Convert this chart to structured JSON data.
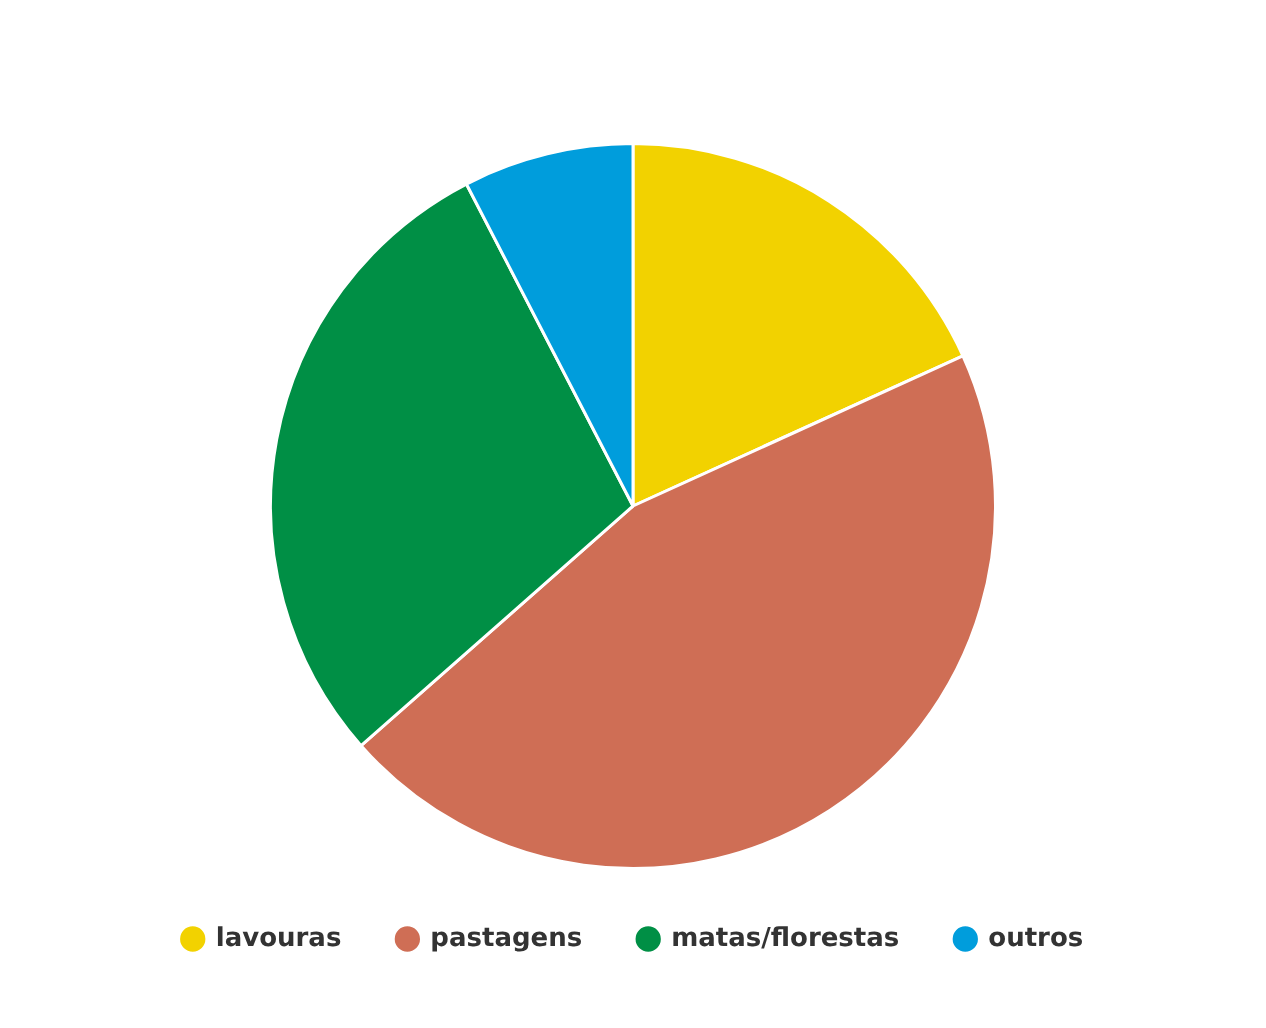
{
  "chart_data": {
    "type": "pie",
    "categories": [
      "lavouras",
      "pastagens",
      "matas/florestas",
      "outros"
    ],
    "values": [
      18.2,
      45.3,
      28.9,
      7.6
    ],
    "colors": [
      "#f2d200",
      "#cf6e55",
      "#008f45",
      "#009ddc"
    ],
    "legend": "bottom"
  }
}
